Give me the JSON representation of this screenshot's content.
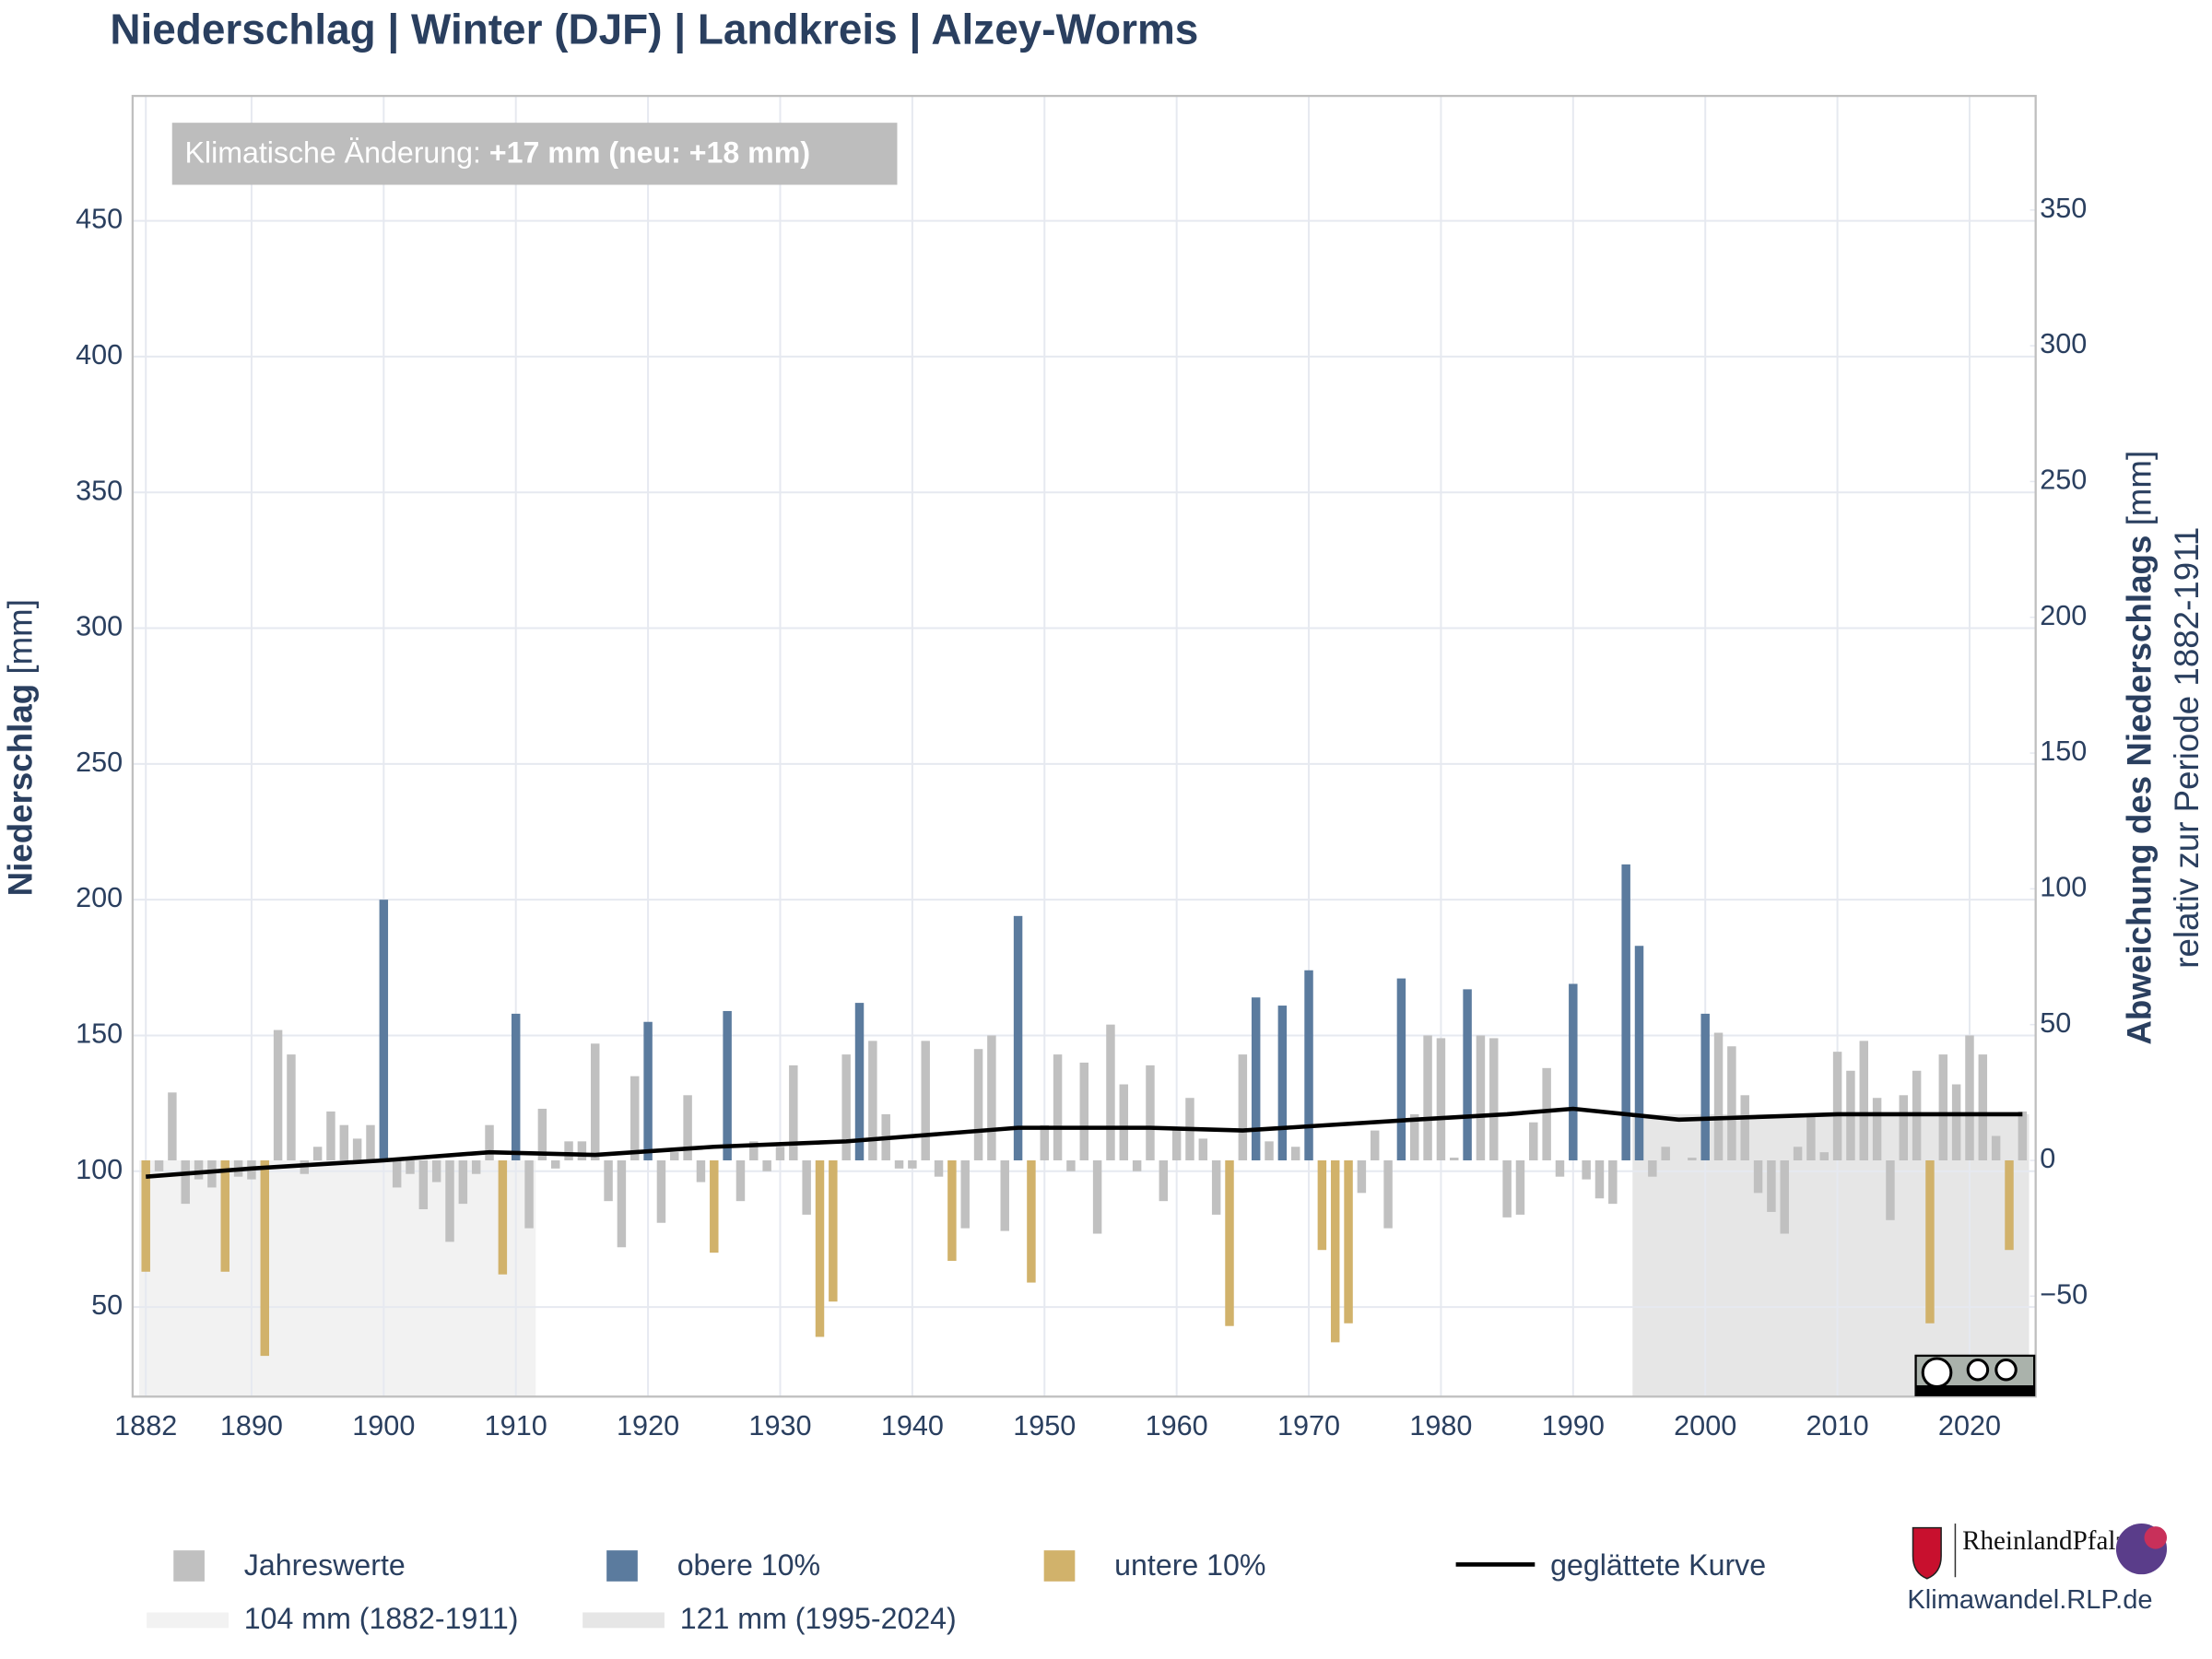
{
  "chart_data": {
    "type": "bar",
    "title": "Niederschlag | Winter (DJF) | Landkreis | Alzey-Worms",
    "y_label": {
      "bold": "Niederschlag",
      "rest": " [mm]"
    },
    "y2_label": {
      "bold": "Abweichung des Niederschlags",
      "rest": " [mm]",
      "line2": "relativ zur Periode 1882-1911"
    },
    "annotation": {
      "text": "Klimatische Änderung: ",
      "emphasis": "+17 mm (neu: +18 mm)"
    },
    "xlim": [
      1881,
      2025
    ],
    "xticks": [
      1882,
      1890,
      1900,
      1910,
      1920,
      1930,
      1940,
      1950,
      1960,
      1970,
      1980,
      1990,
      2000,
      2010,
      2020
    ],
    "ylim": [
      17,
      496
    ],
    "yticks": [
      50,
      100,
      150,
      200,
      250,
      300,
      350,
      400,
      450
    ],
    "y2lim": [
      -87,
      392
    ],
    "y2ticks": [
      {
        "value": -50,
        "label": "−50"
      },
      0,
      50,
      100,
      150,
      200,
      250,
      300,
      350
    ],
    "grid": true,
    "references": [
      {
        "name": "104 mm (1882-1911)",
        "value": 104,
        "start": 1882,
        "end": 1911,
        "color": "#f2f2f2"
      },
      {
        "name": "121 mm (1995-2024)",
        "value": 121,
        "start": 1995,
        "end": 2024,
        "color": "#e6e6e6"
      }
    ],
    "series": [
      {
        "name": "Jahreswerte",
        "type": "bar",
        "color": "#c0c0c0",
        "x": [
          1883,
          1884,
          1885,
          1886,
          1887,
          1889,
          1890,
          1892,
          1893,
          1894,
          1895,
          1896,
          1897,
          1898,
          1899,
          1901,
          1902,
          1903,
          1904,
          1905,
          1906,
          1907,
          1908,
          1911,
          1912,
          1913,
          1914,
          1915,
          1916,
          1917,
          1918,
          1919,
          1921,
          1922,
          1923,
          1924,
          1927,
          1928,
          1929,
          1930,
          1931,
          1932,
          1935,
          1937,
          1938,
          1939,
          1940,
          1941,
          1942,
          1944,
          1945,
          1946,
          1947,
          1950,
          1951,
          1952,
          1953,
          1954,
          1955,
          1956,
          1957,
          1958,
          1959,
          1960,
          1961,
          1962,
          1963,
          1965,
          1967,
          1969,
          1974,
          1975,
          1976,
          1978,
          1979,
          1980,
          1981,
          1983,
          1984,
          1985,
          1986,
          1987,
          1988,
          1989,
          1991,
          1992,
          1993,
          1996,
          1997,
          1998,
          1999,
          2001,
          2002,
          2003,
          2004,
          2005,
          2006,
          2007,
          2008,
          2009,
          2010,
          2011,
          2012,
          2013,
          2014,
          2015,
          2016,
          2018,
          2019,
          2020,
          2021,
          2022,
          2024
        ],
        "values": [
          100,
          129,
          88,
          97,
          94,
          98,
          97,
          152,
          143,
          99,
          109,
          122,
          117,
          112,
          117,
          94,
          99,
          86,
          96,
          74,
          88,
          99,
          117,
          79,
          123,
          101,
          111,
          111,
          147,
          89,
          72,
          135,
          81,
          107,
          128,
          96,
          89,
          111,
          100,
          109,
          139,
          84,
          143,
          148,
          121,
          101,
          101,
          148,
          98,
          79,
          145,
          150,
          78,
          117,
          143,
          100,
          140,
          77,
          154,
          132,
          100,
          139,
          89,
          116,
          127,
          112,
          84,
          143,
          111,
          109,
          92,
          115,
          79,
          121,
          150,
          149,
          105,
          150,
          149,
          83,
          84,
          118,
          138,
          98,
          97,
          90,
          88,
          98,
          109,
          104,
          105,
          151,
          146,
          128,
          92,
          85,
          77,
          109,
          120,
          107,
          144,
          137,
          148,
          127,
          82,
          128,
          137,
          143,
          132,
          150,
          143,
          113,
          122
        ]
      },
      {
        "name": "obere 10%",
        "type": "bar",
        "color": "#5b7b9e",
        "x": [
          1900,
          1910,
          1920,
          1926,
          1936,
          1948,
          1966,
          1968,
          1970,
          1977,
          1982,
          1990,
          1994,
          1995,
          2000
        ],
        "values": [
          200,
          158,
          155,
          159,
          162,
          194,
          164,
          161,
          174,
          171,
          167,
          169,
          213,
          183,
          158
        ]
      },
      {
        "name": "untere 10%",
        "type": "bar",
        "color": "#d1b26b",
        "x": [
          1882,
          1888,
          1891,
          1909,
          1925,
          1933,
          1934,
          1943,
          1949,
          1964,
          1971,
          1972,
          1973,
          2017,
          2023
        ],
        "values": [
          63,
          63,
          32,
          62,
          70,
          39,
          52,
          67,
          59,
          43,
          71,
          37,
          44,
          44,
          71
        ]
      },
      {
        "name": "geglättete Kurve",
        "type": "line",
        "color": "#000000",
        "x": [
          1882,
          1890,
          1900,
          1908,
          1916,
          1925,
          1935,
          1948,
          1958,
          1965,
          1978,
          1985,
          1990,
          1998,
          2010,
          2024
        ],
        "values": [
          98,
          101,
          104,
          107,
          106,
          109,
          111,
          116,
          116,
          115,
          119,
          121,
          123,
          119,
          121,
          121
        ]
      }
    ],
    "source_logo": "RheinlandPfalz",
    "source": "Klimawandel.RLP.de"
  }
}
